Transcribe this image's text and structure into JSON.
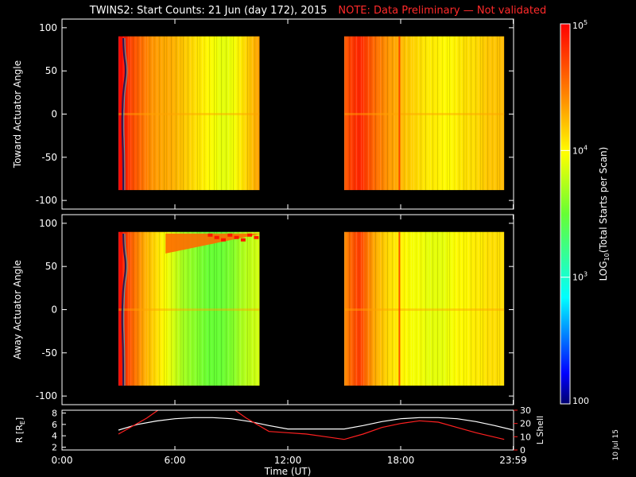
{
  "title": "TWINS2: Start Counts: 21 Jun (day 172), 2015",
  "note": "NOTE: Data Preliminary — Not validated",
  "date_stamp": "10 Jul 15",
  "colors": {
    "background": "#000000",
    "axis": "#ffffff",
    "note": "#ff2a2a",
    "lshell": "#ff2020"
  },
  "chart_data": [
    {
      "type": "heatmap",
      "ylabel": "Toward Actuator Angle",
      "ylim": [
        -110,
        110
      ],
      "yticks": [
        100,
        50,
        0,
        -50,
        -100
      ],
      "segments": [
        {
          "start_h": 3.0,
          "end_h": 10.5,
          "profile": [
            5.0,
            4.9,
            4.7,
            4.6,
            4.5,
            4.4,
            4.35,
            4.3,
            4.3,
            4.25,
            4.2,
            4.15,
            4.1,
            4.05,
            4.0,
            3.95,
            3.9,
            3.9,
            3.95,
            4.05,
            4.15,
            4.25,
            4.35
          ]
        },
        {
          "start_h": 15.0,
          "end_h": 23.5,
          "profile": [
            4.6,
            4.75,
            4.85,
            4.7,
            4.55,
            4.45,
            4.35,
            4.3,
            4.2,
            4.15,
            4.1,
            4.05,
            4.05,
            4.0,
            4.0,
            4.05,
            4.1,
            4.1,
            4.15,
            4.2,
            4.2,
            4.25
          ]
        }
      ],
      "zero_angle_stripe": true
    },
    {
      "type": "heatmap",
      "ylabel": "Away Actuator Angle",
      "ylim": [
        -110,
        110
      ],
      "yticks": [
        100,
        50,
        0,
        -50,
        -100
      ],
      "segments": [
        {
          "start_h": 3.0,
          "end_h": 10.5,
          "profile": [
            5.0,
            4.8,
            4.6,
            4.45,
            4.3,
            4.2,
            4.1,
            4.0,
            3.9,
            3.8,
            3.7,
            3.65,
            3.6,
            3.55,
            3.5,
            3.5,
            3.5,
            3.55,
            3.6,
            3.7,
            3.75,
            3.8,
            3.85
          ]
        },
        {
          "start_h": 15.0,
          "end_h": 23.5,
          "profile": [
            4.4,
            4.6,
            4.75,
            4.5,
            4.3,
            4.2,
            4.1,
            4.05,
            4.0,
            3.95,
            3.95,
            3.9,
            3.9,
            3.9,
            3.95,
            4.0,
            4.0,
            4.05,
            4.05,
            4.1,
            4.1,
            4.1
          ]
        }
      ],
      "zero_angle_stripe": true,
      "high_angle_enhancement": {
        "start_h": 5.5,
        "end_h": 10.5,
        "angle_from": 65,
        "angle_to": 90
      }
    },
    {
      "type": "line",
      "xlabel": "Time (UT)",
      "xticks": [
        "0:00",
        "6:00",
        "12:00",
        "18:00",
        "23:59"
      ],
      "xtick_hours": [
        0,
        6,
        12,
        18,
        23.98
      ],
      "xlim": [
        0,
        24
      ],
      "ylabel_left": "R [R_E]",
      "ylim_left": [
        1.5,
        8.5
      ],
      "yticks_left": [
        2,
        4,
        6,
        8
      ],
      "ylabel_right": "L Shell",
      "ylim_right": [
        0,
        30
      ],
      "yticks_right": [
        0,
        10,
        20,
        30
      ],
      "series": [
        {
          "name": "R [R_E]",
          "axis": "left",
          "color": "#ffffff",
          "x": [
            3.0,
            4.0,
            5.0,
            6.0,
            7.0,
            8.0,
            9.0,
            10.0,
            11.0,
            12.0,
            13.0,
            14.0,
            15.0,
            16.0,
            17.0,
            18.0,
            19.0,
            20.0,
            21.0,
            22.0,
            23.0,
            24.0
          ],
          "y": [
            5.0,
            6.0,
            6.6,
            7.0,
            7.2,
            7.2,
            7.0,
            6.5,
            5.8,
            5.2,
            5.2,
            5.2,
            5.2,
            5.8,
            6.5,
            7.0,
            7.2,
            7.2,
            7.0,
            6.5,
            5.8,
            5.0
          ]
        },
        {
          "name": "L Shell",
          "axis": "right",
          "color": "#ff2020",
          "x": [
            3.0,
            4.5,
            5.3,
            9.0,
            9.8,
            11.0,
            12.0,
            13.0,
            14.0,
            15.0,
            16.0,
            17.0,
            18.0,
            19.0,
            20.0,
            21.0,
            22.0,
            23.5
          ],
          "y": [
            12.0,
            24.0,
            32.0,
            32.0,
            24.0,
            14.0,
            13.0,
            12.0,
            10.0,
            8.0,
            12.0,
            17.0,
            20.0,
            22.0,
            21.0,
            17.0,
            13.0,
            8.0
          ]
        }
      ]
    }
  ],
  "colorbar": {
    "label": "LOG10(Total Starts per Scan)",
    "label_prefix": "LOG",
    "label_sub": "10",
    "label_suffix": "(Total Starts per Scan)",
    "min_log": 2,
    "max_log": 5,
    "ticks": [
      {
        "log": 5,
        "label": "10",
        "sup": "5"
      },
      {
        "log": 4,
        "label": "10",
        "sup": "4"
      },
      {
        "log": 3,
        "label": "10",
        "sup": "3"
      },
      {
        "log": 2,
        "label": "100",
        "sup": ""
      }
    ]
  }
}
